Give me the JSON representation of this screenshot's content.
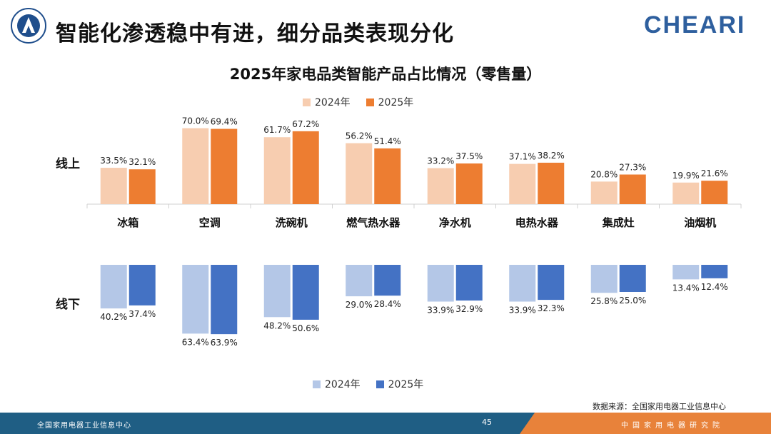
{
  "header": {
    "title": "智能化渗透稳中有进，细分品类表现分化",
    "brand": "CHEARI"
  },
  "chart_data": {
    "type": "bar",
    "title": "2025年家电品类智能产品占比情况（零售量）",
    "categories": [
      "冰箱",
      "空调",
      "洗碗机",
      "燃气热水器",
      "净水机",
      "电热水器",
      "集成灶",
      "油烟机"
    ],
    "groups": [
      {
        "name": "线上",
        "series": [
          {
            "name": "2024年",
            "color": "#f7cdb0",
            "values": [
              33.5,
              70.0,
              61.7,
              56.2,
              33.2,
              37.1,
              20.8,
              19.9
            ]
          },
          {
            "name": "2025年",
            "color": "#ed7d31",
            "values": [
              32.1,
              69.4,
              67.2,
              51.4,
              37.5,
              38.2,
              27.3,
              21.6
            ]
          }
        ]
      },
      {
        "name": "线下",
        "series": [
          {
            "name": "2024年",
            "color": "#b4c7e7",
            "values": [
              40.2,
              63.4,
              48.2,
              29.0,
              33.9,
              33.9,
              25.8,
              13.4
            ]
          },
          {
            "name": "2025年",
            "color": "#4472c4",
            "values": [
              37.4,
              63.9,
              50.6,
              28.4,
              32.9,
              32.3,
              25.0,
              12.4
            ]
          }
        ]
      }
    ],
    "unit": "%"
  },
  "source": "数据来源：全国家用电器工业信息中心",
  "footer": {
    "left": "全国家用电器工业信息中心",
    "page": "45",
    "right": "中国家用电器研究院"
  }
}
